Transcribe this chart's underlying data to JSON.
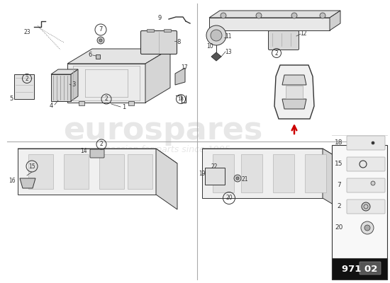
{
  "bg_color": "#ffffff",
  "line_color": "#333333",
  "light_gray": "#cccccc",
  "mid_gray": "#999999",
  "dark_gray": "#666666",
  "part_fill": "#e8e8e8",
  "part_fill2": "#d8d8d8",
  "part_fill3": "#c8c8c8",
  "watermark_color": "#d5d5d5",
  "red_color": "#cc0000",
  "black_color": "#111111",
  "white_color": "#ffffff",
  "title": "971 02",
  "divider_color": "#aaaaaa"
}
